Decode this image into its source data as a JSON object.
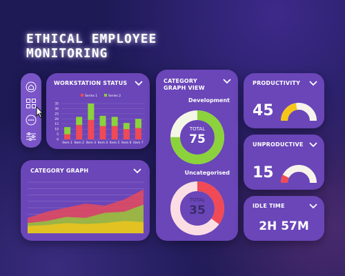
{
  "app_title_line1": "ETHICAL EMPLOYEE",
  "app_title_line2": "MONITORING",
  "nav": {
    "items": [
      {
        "label": "home",
        "icon": "home-icon"
      },
      {
        "label": "dashboard",
        "icon": "grid-icon"
      },
      {
        "label": "more",
        "icon": "more-icon"
      },
      {
        "label": "settings",
        "icon": "sliders-icon"
      }
    ]
  },
  "workstation": {
    "title": "WORKSTATION STATUS",
    "chart_data": {
      "type": "bar",
      "stacked": true,
      "categories": [
        "Item 1",
        "Item 2",
        "Item 3",
        "Item 4",
        "Item 5",
        "Item 6",
        "Item 7"
      ],
      "series": [
        {
          "name": "Series 1",
          "color": "#ef4a55",
          "values": [
            5,
            14,
            19,
            13,
            13,
            10,
            11
          ]
        },
        {
          "name": "Series 2",
          "color": "#8bd23c",
          "values": [
            7,
            8,
            16,
            10,
            9,
            6,
            9
          ]
        }
      ],
      "yticks": [
        "0",
        "5",
        "10",
        "15",
        "20",
        "25",
        "30",
        "35"
      ],
      "ylim": [
        0,
        35
      ],
      "legend_position": "top",
      "grid": true
    }
  },
  "category_view": {
    "title_line1": "CATEGORY",
    "title_line2": "GRAPH VIEW",
    "development": {
      "label": "Development",
      "total_label": "TOTAL",
      "total": "75",
      "fraction": 0.75,
      "ring_color": "#8bd23c",
      "track_color": "#f4f6e6"
    },
    "uncategorised": {
      "label": "Uncategorised",
      "total_label": "TOTAL",
      "total": "35",
      "fraction": 0.35,
      "ring_color": "#ef4a55",
      "track_color": "#fbdde4"
    }
  },
  "productivity": {
    "title": "PRODUCTIVITY",
    "value": "45",
    "fraction": 0.45,
    "color": "#f5c518"
  },
  "unproductive": {
    "title": "UNPRODUCTIVE",
    "value": "15",
    "fraction": 0.15,
    "color": "#ef4a55"
  },
  "idle": {
    "title": "IDLE TIME",
    "value": "2H 57M"
  },
  "category_graph": {
    "title": "CATEGORY GRAPH",
    "chart_data": {
      "type": "area",
      "x": [
        0,
        1,
        2,
        3,
        4,
        5,
        6
      ],
      "series": [
        {
          "color": "#ef4a55",
          "values": [
            0.3,
            0.42,
            0.5,
            0.58,
            0.54,
            0.66,
            0.86
          ]
        },
        {
          "color": "#8bd23c",
          "values": [
            0.2,
            0.24,
            0.32,
            0.3,
            0.4,
            0.42,
            0.56
          ]
        },
        {
          "color": "#f5c518",
          "values": [
            0.14,
            0.16,
            0.2,
            0.18,
            0.2,
            0.24,
            0.22
          ]
        }
      ],
      "ylim": [
        0,
        1
      ],
      "grid": true
    }
  }
}
